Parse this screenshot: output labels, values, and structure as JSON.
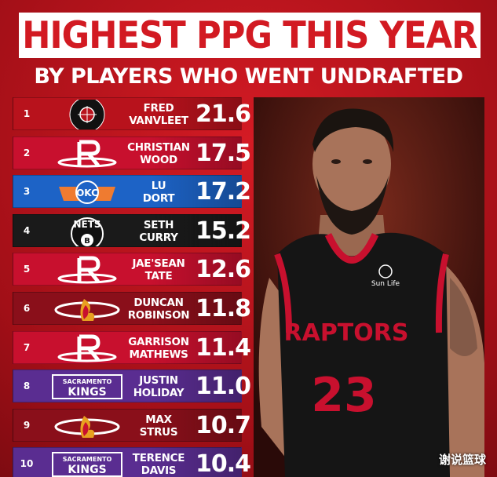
{
  "header": {
    "title": "HIGHEST PPG THIS YEAR",
    "subtitle": "BY PLAYERS WHO WENT UNDRAFTED"
  },
  "colors": {
    "raptors": "#b8121c",
    "rockets": "#c8102e",
    "thunder": "#1d63c6",
    "nets": "#1a1a1a",
    "heat": "#8a0f1a",
    "kings": "#5a2d91"
  },
  "chart_data": {
    "type": "table",
    "title": "HIGHEST PPG THIS YEAR",
    "subtitle": "BY PLAYERS WHO WENT UNDRAFTED",
    "columns": [
      "rank",
      "team",
      "player",
      "ppg"
    ],
    "rows": [
      {
        "rank": "1",
        "team_icon": "raptors-logo",
        "first": "FRED",
        "last": "VANVLEET",
        "ppg": "21.6",
        "color": "#b8121c"
      },
      {
        "rank": "2",
        "team_icon": "rockets-logo",
        "first": "CHRISTIAN",
        "last": "WOOD",
        "ppg": "17.5",
        "color": "#c8102e"
      },
      {
        "rank": "3",
        "team_icon": "thunder-logo",
        "first": "LU",
        "last": "DORT",
        "ppg": "17.2",
        "color": "#1d63c6"
      },
      {
        "rank": "4",
        "team_icon": "nets-logo",
        "first": "SETH",
        "last": "CURRY",
        "ppg": "15.2",
        "color": "#1a1a1a"
      },
      {
        "rank": "5",
        "team_icon": "rockets-logo",
        "first": "JAE'SEAN",
        "last": "TATE",
        "ppg": "12.6",
        "color": "#c8102e"
      },
      {
        "rank": "6",
        "team_icon": "heat-logo",
        "first": "DUNCAN",
        "last": "ROBINSON",
        "ppg": "11.8",
        "color": "#8a0f1a"
      },
      {
        "rank": "7",
        "team_icon": "rockets-logo",
        "first": "GARRISON",
        "last": "MATHEWS",
        "ppg": "11.4",
        "color": "#c8102e"
      },
      {
        "rank": "8",
        "team_icon": "kings-logo",
        "first": "JUSTIN",
        "last": "HOLIDAY",
        "ppg": "11.0",
        "color": "#5a2d91"
      },
      {
        "rank": "9",
        "team_icon": "heat-logo",
        "first": "MAX",
        "last": "STRUS",
        "ppg": "10.7",
        "color": "#8a0f1a"
      },
      {
        "rank": "10",
        "team_icon": "kings-logo",
        "first": "TERENCE",
        "last": "DAVIS",
        "ppg": "10.4",
        "color": "#5a2d91"
      }
    ]
  },
  "logos": {
    "okc_text": "OKC",
    "nets_text": "NETS",
    "kings_top": "SACRAMENTO",
    "kings_bottom": "KINGS"
  },
  "photo": {
    "jersey_text": "RAPTORS",
    "jersey_number": "23",
    "sponsor": "Sun Life"
  },
  "watermark": "谢说篮球"
}
